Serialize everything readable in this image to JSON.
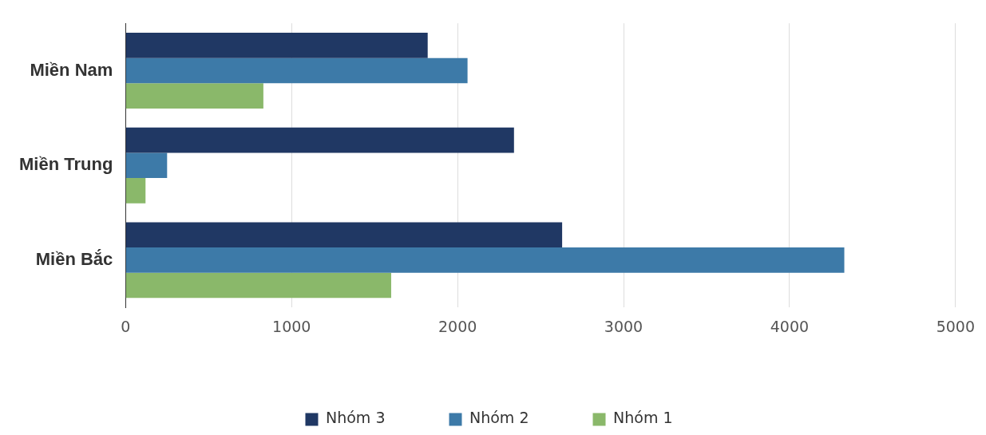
{
  "chart_data": {
    "type": "bar",
    "orientation": "horizontal",
    "categories": [
      "Miền Nam",
      "Miền Trung",
      "Miền Bắc"
    ],
    "series": [
      {
        "name": "Nhóm 3",
        "color": "#203864",
        "values": [
          1820,
          2340,
          2630
        ]
      },
      {
        "name": "Nhóm 2",
        "color": "#3d7aa8",
        "values": [
          2060,
          250,
          4330
        ]
      },
      {
        "name": "Nhóm 1",
        "color": "#8ab86a",
        "values": [
          830,
          120,
          1600
        ]
      }
    ],
    "xlim": [
      0,
      5000
    ],
    "xticks": [
      0,
      1000,
      2000,
      3000,
      4000,
      5000
    ],
    "grid": "x",
    "legend": "bottom"
  }
}
